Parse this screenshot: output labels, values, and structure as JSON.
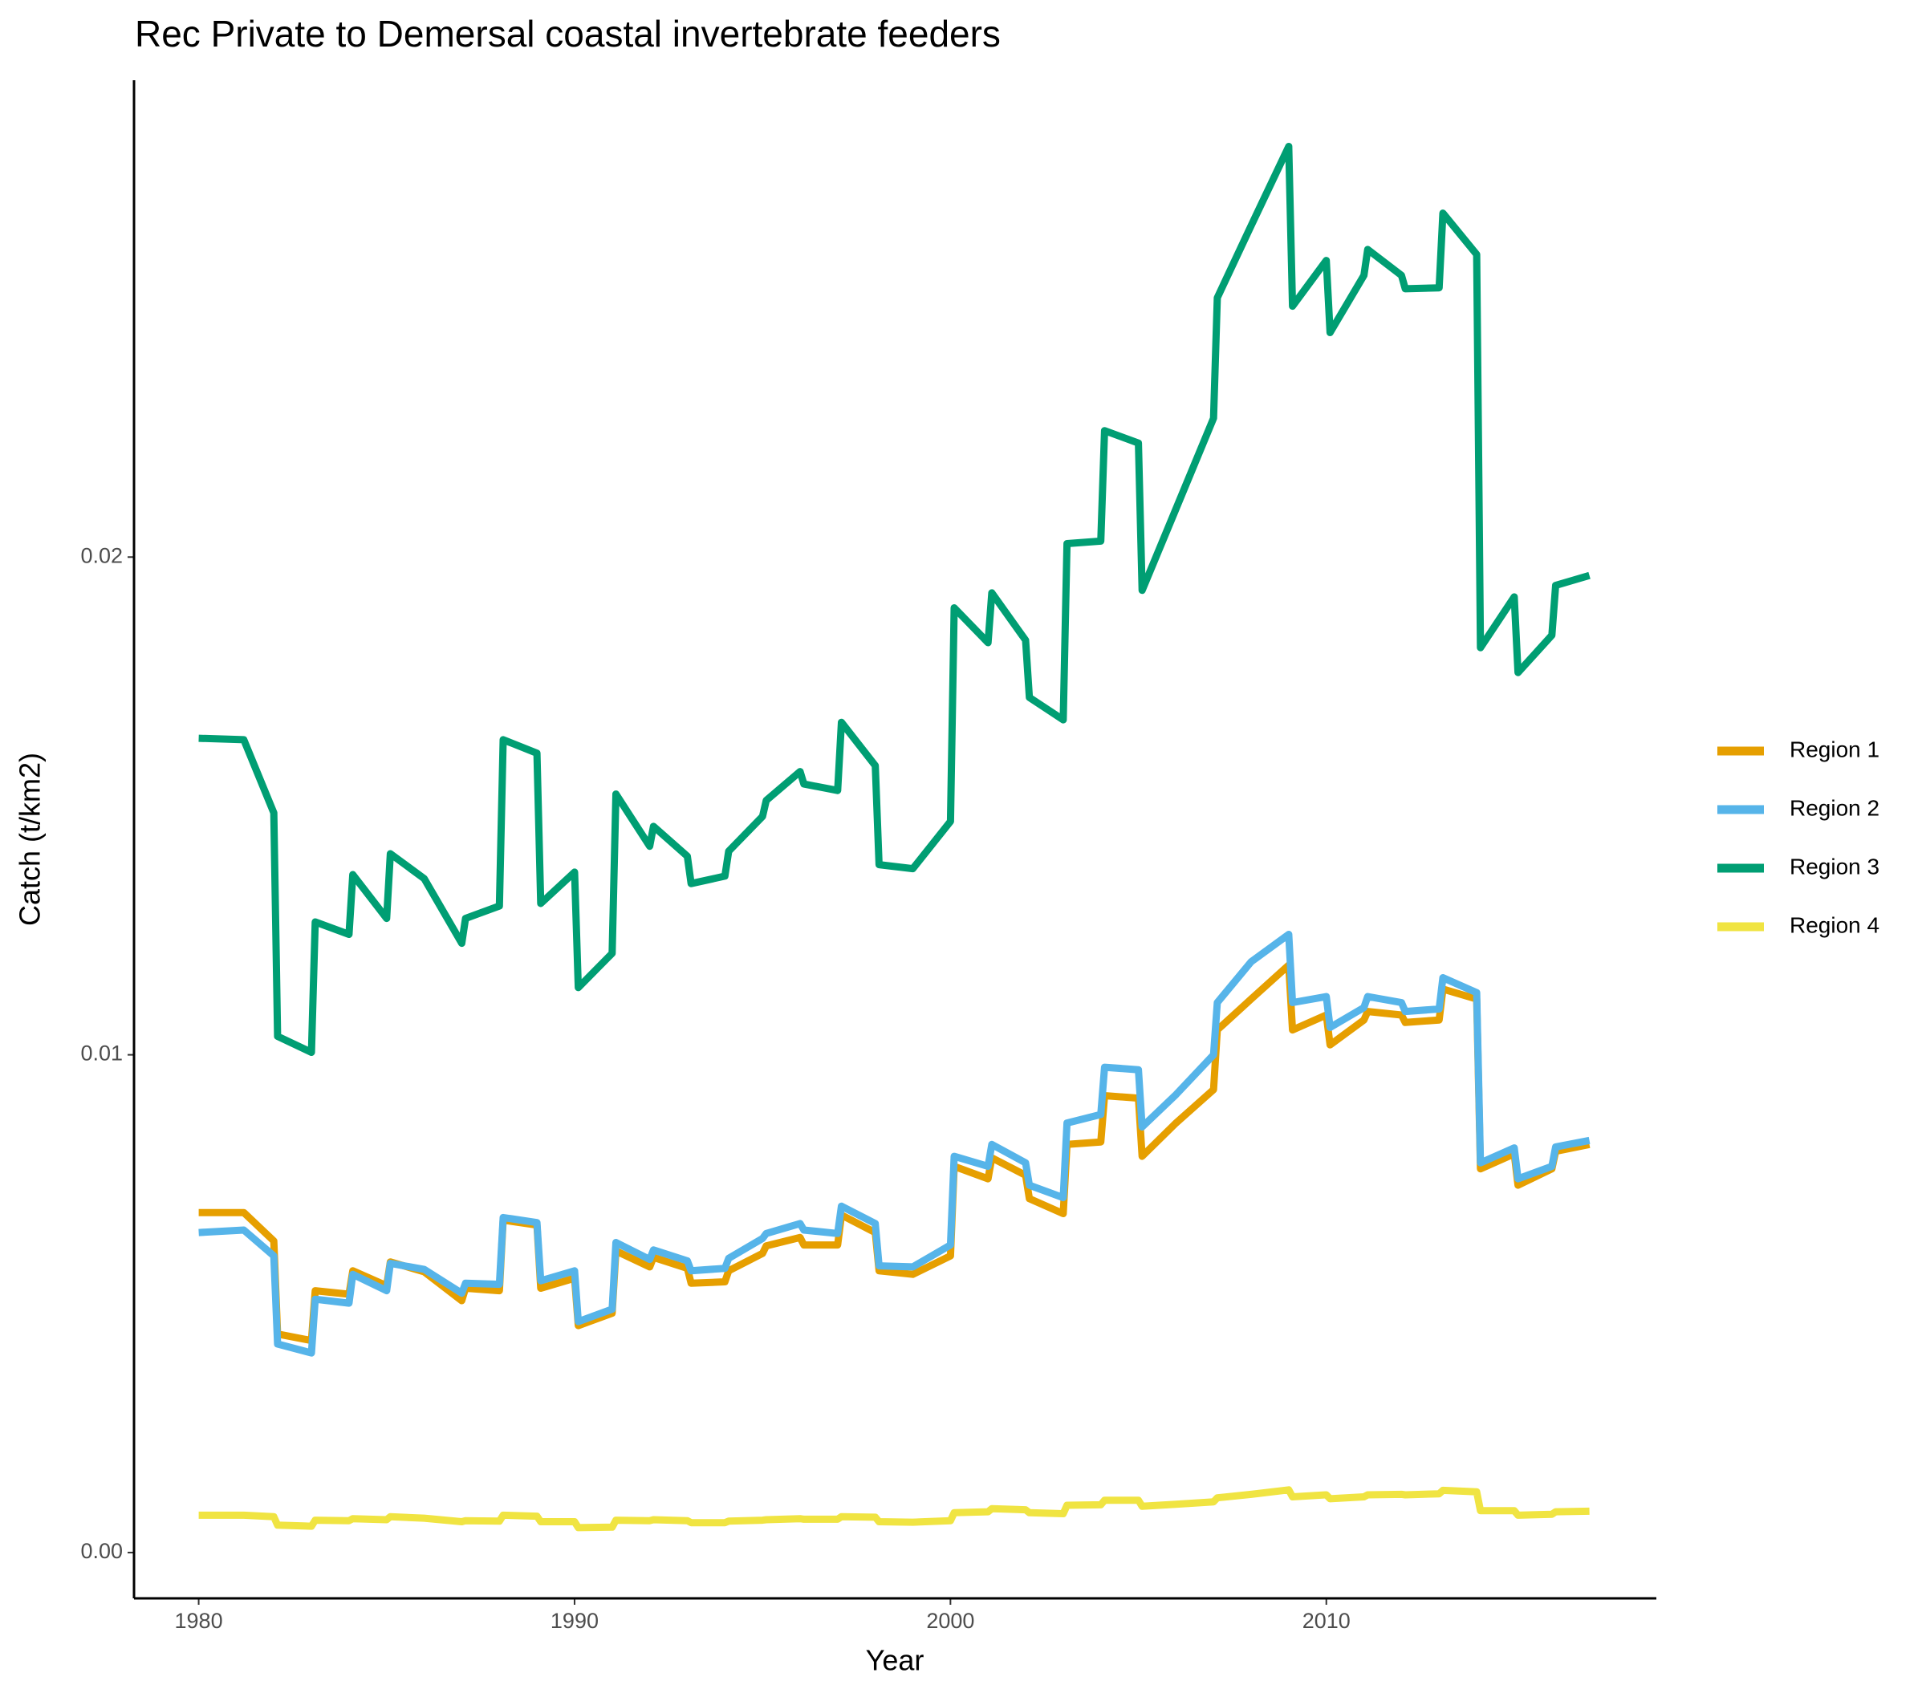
{
  "chart_data": {
    "type": "line",
    "title": "Rec Private to Demersal coastal invertebrate feeders",
    "x_label": "Year",
    "y_label": "Catch (t/km2)",
    "x": [
      1980,
      1981.2,
      1982,
      1982.1,
      1983,
      1983.1,
      1984,
      1984.1,
      1985,
      1985.1,
      1986,
      1987,
      1987.1,
      1988,
      1988.1,
      1989,
      1989.1,
      1990,
      1990.1,
      1991,
      1991.1,
      1992,
      1992.1,
      1993,
      1993.1,
      1994,
      1994.1,
      1995,
      1995.1,
      1996,
      1996.1,
      1997,
      1997.1,
      1998,
      1998.1,
      1999,
      2000,
      2000.1,
      2001,
      2001.1,
      2002,
      2002.1,
      2003,
      2003.1,
      2004,
      2004.1,
      2005,
      2005.1,
      2006,
      2007,
      2007.1,
      2008,
      2009,
      2009.1,
      2010,
      2010.1,
      2011,
      2011.1,
      2012,
      2012.1,
      2013,
      2013.1,
      2014,
      2014.1,
      2015,
      2015.1,
      2016,
      2016.1,
      2017
    ],
    "series": [
      {
        "name": "Region 1",
        "color": "#e69f00",
        "values": [
          0.00683,
          0.00683,
          0.00626,
          0.00439,
          0.00426,
          0.00526,
          0.00519,
          0.00566,
          0.00536,
          0.00584,
          0.00564,
          0.00506,
          0.00531,
          0.00526,
          0.00668,
          0.00658,
          0.00531,
          0.00551,
          0.00456,
          0.00481,
          0.00606,
          0.00574,
          0.00593,
          0.00571,
          0.00541,
          0.00544,
          0.00566,
          0.00601,
          0.00616,
          0.00633,
          0.00618,
          0.00618,
          0.00678,
          0.00643,
          0.00566,
          0.00559,
          0.00596,
          0.00776,
          0.00751,
          0.00793,
          0.00758,
          0.00711,
          0.00681,
          0.0082,
          0.00825,
          0.00918,
          0.00913,
          0.00796,
          0.00863,
          0.0093,
          0.0105,
          0.01112,
          0.0118,
          0.0105,
          0.0108,
          0.0102,
          0.0107,
          0.01087,
          0.0108,
          0.01065,
          0.0107,
          0.01132,
          0.01112,
          0.00771,
          0.00801,
          0.00738,
          0.00771,
          0.00806,
          0.0082
        ]
      },
      {
        "name": "Region 2",
        "color": "#56b4e9",
        "values": [
          0.00643,
          0.00648,
          0.00596,
          0.00419,
          0.00401,
          0.00509,
          0.00501,
          0.00559,
          0.00526,
          0.00581,
          0.00569,
          0.00521,
          0.00541,
          0.00539,
          0.00673,
          0.00663,
          0.00546,
          0.00566,
          0.00464,
          0.00489,
          0.00623,
          0.00589,
          0.00608,
          0.00586,
          0.00566,
          0.00571,
          0.00591,
          0.00631,
          0.00641,
          0.00661,
          0.00648,
          0.00641,
          0.00696,
          0.00661,
          0.00576,
          0.00574,
          0.00618,
          0.00796,
          0.00776,
          0.0082,
          0.00783,
          0.00738,
          0.00713,
          0.00863,
          0.0088,
          0.00975,
          0.0097,
          0.00855,
          0.0092,
          0.01,
          0.01105,
          0.01187,
          0.01242,
          0.01105,
          0.01117,
          0.01055,
          0.01095,
          0.01117,
          0.01105,
          0.01087,
          0.01092,
          0.01155,
          0.01125,
          0.00783,
          0.00813,
          0.00751,
          0.00776,
          0.00815,
          0.00828
        ]
      },
      {
        "name": "Region 3",
        "color": "#009e73",
        "values": [
          0.01636,
          0.01633,
          0.01486,
          0.01037,
          0.01005,
          0.01267,
          0.01242,
          0.01362,
          0.01274,
          0.01404,
          0.01354,
          0.01224,
          0.01274,
          0.01299,
          0.01633,
          0.01606,
          0.01304,
          0.01367,
          0.01135,
          0.01204,
          0.01524,
          0.01419,
          0.01459,
          0.01399,
          0.01344,
          0.01359,
          0.01409,
          0.01479,
          0.01511,
          0.01569,
          0.01544,
          0.01531,
          0.01668,
          0.01581,
          0.01382,
          0.01374,
          0.01469,
          0.01898,
          0.01828,
          0.01928,
          0.01833,
          0.01718,
          0.01673,
          0.02027,
          0.02032,
          0.02254,
          0.02229,
          0.01933,
          0.02097,
          0.02279,
          0.02521,
          0.02666,
          0.02825,
          0.02504,
          0.02596,
          0.02451,
          0.02566,
          0.02618,
          0.02566,
          0.02539,
          0.02541,
          0.02691,
          0.02608,
          0.01818,
          0.0192,
          0.01768,
          0.01843,
          0.01943,
          0.01963
        ]
      },
      {
        "name": "Region 4",
        "color": "#f0e442",
        "values": [
          0.00075,
          0.00075,
          0.00072,
          0.00055,
          0.00053,
          0.00065,
          0.00064,
          0.00068,
          0.00066,
          0.00072,
          0.00069,
          0.00062,
          0.00064,
          0.00063,
          0.00075,
          0.00073,
          0.00062,
          0.00062,
          0.0005,
          0.00051,
          0.00065,
          0.00064,
          0.00066,
          0.00064,
          0.0006,
          0.0006,
          0.00063,
          0.00065,
          0.00066,
          0.00068,
          0.00067,
          0.00067,
          0.00072,
          0.00071,
          0.00062,
          0.00061,
          0.00064,
          0.0008,
          0.00082,
          0.00088,
          0.00086,
          0.0008,
          0.00078,
          0.00095,
          0.00096,
          0.00105,
          0.00105,
          0.00093,
          0.00097,
          0.00102,
          0.0011,
          0.00117,
          0.00126,
          0.00112,
          0.00116,
          0.00108,
          0.00112,
          0.00116,
          0.00117,
          0.00116,
          0.00118,
          0.00125,
          0.00122,
          0.00084,
          0.00084,
          0.00075,
          0.00077,
          0.00082,
          0.00083
        ]
      }
    ],
    "xlim": [
      1978.28,
      2018.78
    ],
    "xticks": [
      1980,
      1990,
      2000,
      2010
    ],
    "ylim": [
      -0.00092,
      0.02958
    ],
    "yticks": [
      {
        "value": 0,
        "label": "0.00"
      },
      0.01,
      0.02
    ],
    "grid": false,
    "legend": "right"
  }
}
